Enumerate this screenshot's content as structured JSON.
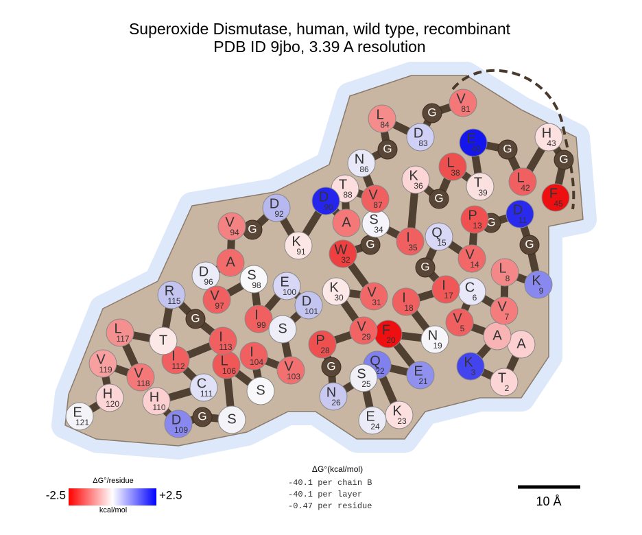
{
  "header": {
    "title": "Superoxide Dismutase, human, wild type, recombinant",
    "subtitle": "PDB ID 9jbo, 3.39 A resolution"
  },
  "residues": [
    {
      "letter": "A",
      "number": null,
      "color": "#fcd0d0"
    },
    {
      "letter": "T",
      "number": 2,
      "color": "#fcd6d6"
    },
    {
      "letter": "K",
      "number": 3,
      "color": "#4444ee"
    },
    {
      "letter": "A",
      "number": null,
      "color": "#f8b4b4"
    },
    {
      "letter": "V",
      "number": 5,
      "color": "#f06060"
    },
    {
      "letter": "C",
      "number": 6,
      "color": "#e8e8f8"
    },
    {
      "letter": "V",
      "number": 7,
      "color": "#f47c7c"
    },
    {
      "letter": "L",
      "number": 8,
      "color": "#f48888"
    },
    {
      "letter": "K",
      "number": 9,
      "color": "#8888ee"
    },
    {
      "letter": "G",
      "number": null,
      "color": "#5a4636"
    },
    {
      "letter": "D",
      "number": 11,
      "color": "#2a2aee"
    },
    {
      "letter": "G",
      "number": null,
      "color": "#5a4636"
    },
    {
      "letter": "P",
      "number": 13,
      "color": "#f05050"
    },
    {
      "letter": "V",
      "number": 14,
      "color": "#f26868"
    },
    {
      "letter": "Q",
      "number": 15,
      "color": "#d8d8f6"
    },
    {
      "letter": "G",
      "number": null,
      "color": "#5a4636"
    },
    {
      "letter": "I",
      "number": 17,
      "color": "#f05858"
    },
    {
      "letter": "I",
      "number": 18,
      "color": "#f06060"
    },
    {
      "letter": "N",
      "number": 19,
      "color": "#f6f6fa"
    },
    {
      "letter": "F",
      "number": 20,
      "color": "#ee1010"
    },
    {
      "letter": "E",
      "number": 21,
      "color": "#9090ee"
    },
    {
      "letter": "Q",
      "number": 22,
      "color": "#8080ee"
    },
    {
      "letter": "K",
      "number": 23,
      "color": "#fce0e0"
    },
    {
      "letter": "E",
      "number": 24,
      "color": "#ebebf8"
    },
    {
      "letter": "S",
      "number": 25,
      "color": "#f0f0f6"
    },
    {
      "letter": "N",
      "number": 26,
      "color": "#c8c8f0"
    },
    {
      "letter": "G",
      "number": null,
      "color": "#5a4636"
    },
    {
      "letter": "P",
      "number": 28,
      "color": "#ee5050"
    },
    {
      "letter": "V",
      "number": 29,
      "color": "#f26464"
    },
    {
      "letter": "K",
      "number": 30,
      "color": "#fde8e8"
    },
    {
      "letter": "V",
      "number": 31,
      "color": "#f26868"
    },
    {
      "letter": "W",
      "number": 32,
      "color": "#ee4040"
    },
    {
      "letter": "G",
      "number": null,
      "color": "#5a4636"
    },
    {
      "letter": "S",
      "number": 34,
      "color": "#f4f4fa"
    },
    {
      "letter": "I",
      "number": 35,
      "color": "#f06060"
    },
    {
      "letter": "K",
      "number": 36,
      "color": "#fcd6d6"
    },
    {
      "letter": "G",
      "number": null,
      "color": "#5a4636"
    },
    {
      "letter": "L",
      "number": 38,
      "color": "#ee5050"
    },
    {
      "letter": "T",
      "number": 39,
      "color": "#fbe0e0"
    },
    {
      "letter": "E",
      "number": 40,
      "color": "#1515ee"
    },
    {
      "letter": "G",
      "number": null,
      "color": "#5a4636"
    },
    {
      "letter": "L",
      "number": 42,
      "color": "#f06060"
    },
    {
      "letter": "H",
      "number": 43,
      "color": "#fde0e0"
    },
    {
      "letter": "G",
      "number": null,
      "color": "#5a4636"
    },
    {
      "letter": "F",
      "number": 45,
      "color": "#ee1010"
    },
    {
      "letter": "V",
      "number": 81,
      "color": "#f47878"
    },
    {
      "letter": "G",
      "number": null,
      "color": "#5a4636"
    },
    {
      "letter": "D",
      "number": 83,
      "color": "#d0d0f6"
    },
    {
      "letter": "L",
      "number": 84,
      "color": "#f48c8c"
    },
    {
      "letter": "G",
      "number": null,
      "color": "#5a4636"
    },
    {
      "letter": "N",
      "number": 86,
      "color": "#e8e8f8"
    },
    {
      "letter": "V",
      "number": 87,
      "color": "#f06060"
    },
    {
      "letter": "T",
      "number": 88,
      "color": "#fddede"
    },
    {
      "letter": "A",
      "number": null,
      "color": "#f47878"
    },
    {
      "letter": "D",
      "number": 90,
      "color": "#2525ee"
    },
    {
      "letter": "K",
      "number": 91,
      "color": "#fde6e6"
    },
    {
      "letter": "D",
      "number": 92,
      "color": "#b8b8f0"
    },
    {
      "letter": "G",
      "number": null,
      "color": "#5a4636"
    },
    {
      "letter": "V",
      "number": 94,
      "color": "#f48282"
    },
    {
      "letter": "A",
      "number": null,
      "color": "#f26c6c"
    },
    {
      "letter": "D",
      "number": 96,
      "color": "#ececf8"
    },
    {
      "letter": "V",
      "number": 97,
      "color": "#f06060"
    },
    {
      "letter": "S",
      "number": 98,
      "color": "#f8f8fa"
    },
    {
      "letter": "I",
      "number": 99,
      "color": "#f06060"
    },
    {
      "letter": "E",
      "number": 100,
      "color": "#d8d8f6"
    },
    {
      "letter": "D",
      "number": 101,
      "color": "#c4c4f0"
    },
    {
      "letter": "S",
      "number": null,
      "color": "#eeeef8"
    },
    {
      "letter": "V",
      "number": 103,
      "color": "#f27070"
    },
    {
      "letter": "I",
      "number": 104,
      "color": "#f06060"
    },
    {
      "letter": "S",
      "number": null,
      "color": "#f8f8fa"
    },
    {
      "letter": "L",
      "number": 106,
      "color": "#f05858"
    },
    {
      "letter": "S",
      "number": null,
      "color": "#f4f4f8"
    },
    {
      "letter": "G",
      "number": null,
      "color": "#5a4636"
    },
    {
      "letter": "D",
      "number": 109,
      "color": "#8888ee"
    },
    {
      "letter": "H",
      "number": 110,
      "color": "#fcd0d0"
    },
    {
      "letter": "C",
      "number": 111,
      "color": "#e0e0f6"
    },
    {
      "letter": "I",
      "number": 112,
      "color": "#f06060"
    },
    {
      "letter": "I",
      "number": 113,
      "color": "#f06060"
    },
    {
      "letter": "G",
      "number": null,
      "color": "#5a4636"
    },
    {
      "letter": "R",
      "number": 115,
      "color": "#c4c4f0"
    },
    {
      "letter": "T",
      "number": null,
      "color": "#fde8e8"
    },
    {
      "letter": "L",
      "number": 117,
      "color": "#f49090"
    },
    {
      "letter": "V",
      "number": 118,
      "color": "#f47878"
    },
    {
      "letter": "V",
      "number": 119,
      "color": "#f8a0a0"
    },
    {
      "letter": "H",
      "number": 120,
      "color": "#fcd6d6"
    },
    {
      "letter": "E",
      "number": 121,
      "color": "#f4f4f8"
    }
  ],
  "colorbar": {
    "title": "ΔG°/residue",
    "min_label": "-2.5",
    "max_label": "+2.5",
    "unit": "kcal/mol"
  },
  "energy": {
    "title": "ΔG°(kcal/mol)",
    "lines": [
      "-40.1 per chain B",
      "-40.1 per layer",
      "-0.47 per residue"
    ]
  },
  "scale_bar": {
    "label": "10 Å"
  }
}
